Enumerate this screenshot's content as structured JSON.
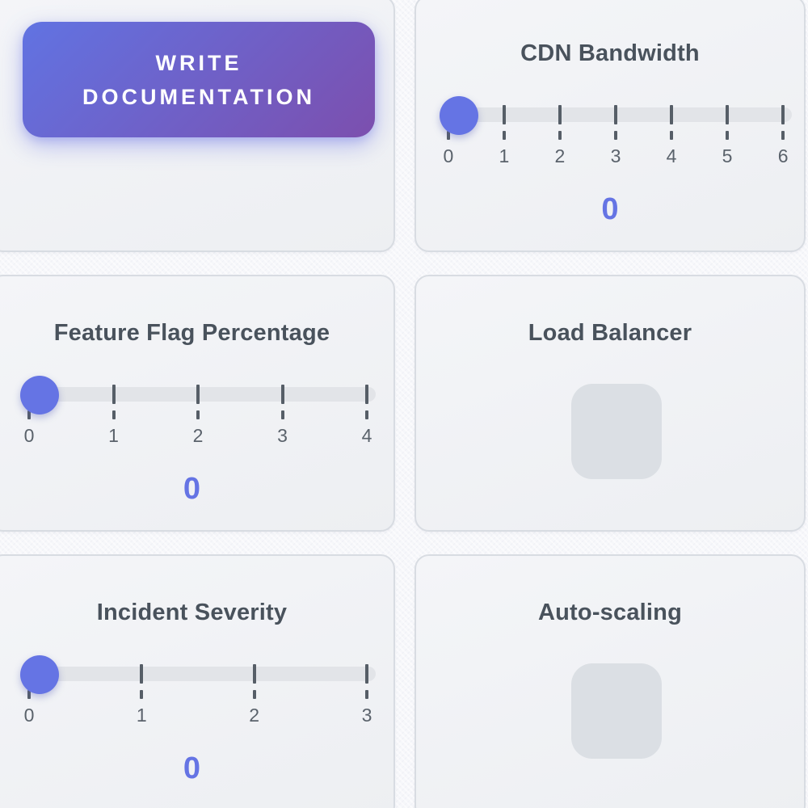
{
  "colors": {
    "accent": "#6574e4",
    "button_gradient_start": "#6173e2",
    "button_gradient_end": "#7c4fae",
    "slider_track": "#e2e4e8",
    "tick": "#565e67",
    "card_title": "#49525c",
    "checkbox_fill": "#dbdfe4",
    "page_background": "#f6f7fa"
  },
  "cards": [
    {
      "kind": "button",
      "button_label": "WRITE DOCUMENTATION"
    },
    {
      "kind": "slider",
      "title": "CDN Bandwidth",
      "value": "0",
      "min": 0,
      "max": 6,
      "slider_position": 0,
      "tick_labels": [
        "0",
        "1",
        "2",
        "3",
        "4",
        "5",
        "6"
      ]
    },
    {
      "kind": "slider",
      "title": "Feature Flag Percentage",
      "value": "0",
      "min": 0,
      "max": 4,
      "slider_position": 0,
      "tick_labels": [
        "0",
        "1",
        "2",
        "3",
        "4"
      ]
    },
    {
      "kind": "checkbox",
      "title": "Load Balancer",
      "checked": false
    },
    {
      "kind": "slider",
      "title": "Incident Severity",
      "value": "0",
      "min": 0,
      "max": 3,
      "slider_position": 0,
      "tick_labels": [
        "0",
        "1",
        "2",
        "3"
      ]
    },
    {
      "kind": "checkbox",
      "title": "Auto-scaling",
      "checked": false
    }
  ]
}
